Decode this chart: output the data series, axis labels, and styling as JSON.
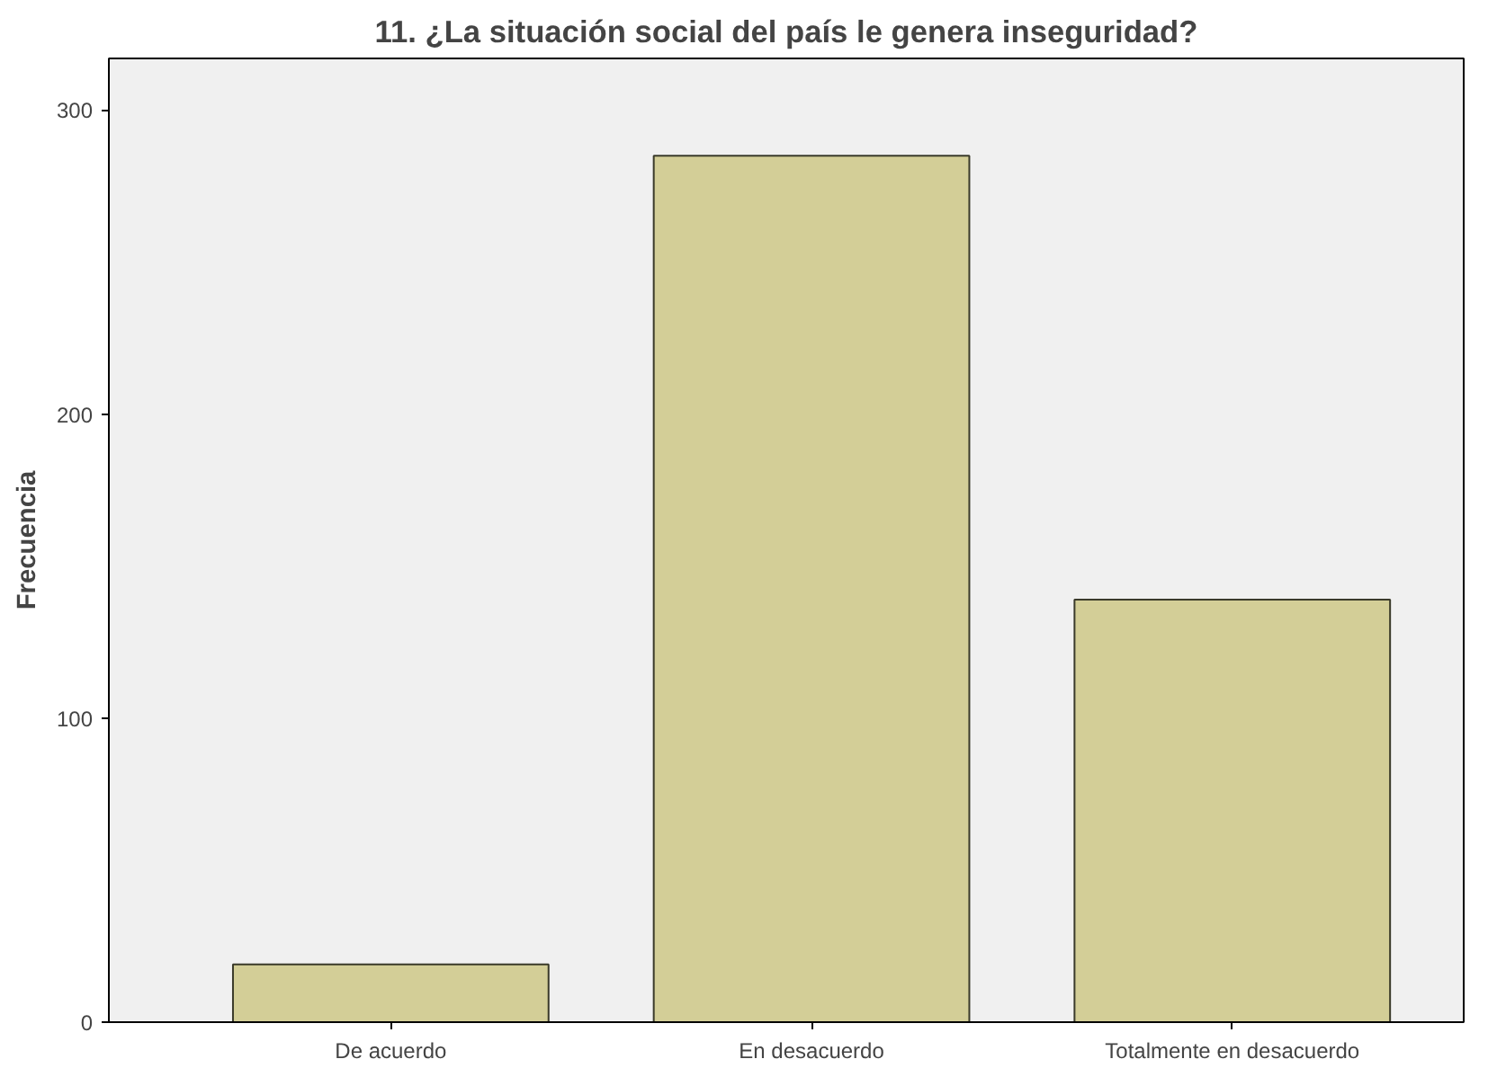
{
  "chart_data": {
    "type": "bar",
    "title": "11. ¿La situación social del país le genera inseguridad?",
    "ylabel": "Frecuencia",
    "categories": [
      "De acuerdo",
      "En desacuerdo",
      "Totalmente en desacuerdo"
    ],
    "values": [
      19,
      285,
      139
    ],
    "color": "#d3ce97",
    "ylim": [
      0,
      317
    ],
    "yticks": [
      0,
      100,
      200,
      300
    ],
    "grid": false
  }
}
